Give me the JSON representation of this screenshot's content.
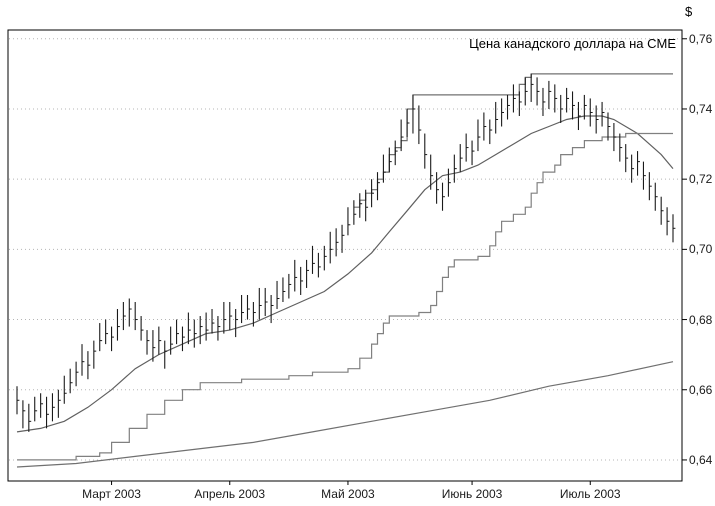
{
  "chart_data": {
    "type": "bar",
    "title": "Цена канадского доллара на CME",
    "ylabel": "$",
    "xlabel": "",
    "ylim": [
      0.634,
      0.7625
    ],
    "grid": true,
    "legend": "none",
    "colors": {
      "bar": "#1a1a1a",
      "grid": "#b5b5b5",
      "frame": "#000000",
      "background": "#ffffff"
    },
    "y_ticks": [
      {
        "value": 0.76,
        "label": "0,76"
      },
      {
        "value": 0.74,
        "label": "0,74"
      },
      {
        "value": 0.72,
        "label": "0,72"
      },
      {
        "value": 0.7,
        "label": "0,70"
      },
      {
        "value": 0.68,
        "label": "0,68"
      },
      {
        "value": 0.66,
        "label": "0,66"
      },
      {
        "value": 0.64,
        "label": "0,64"
      }
    ],
    "x_ticks": [
      {
        "index": 16,
        "label": "Март 2003"
      },
      {
        "index": 36,
        "label": "Апрель 2003"
      },
      {
        "index": 56,
        "label": "Май 2003"
      },
      {
        "index": 77,
        "label": "Июнь 2003"
      },
      {
        "index": 97,
        "label": "Июль 2003"
      }
    ],
    "bars": {
      "name": "price-daily-hlc",
      "high": [
        0.661,
        0.657,
        0.656,
        0.658,
        0.659,
        0.658,
        0.659,
        0.66,
        0.664,
        0.666,
        0.668,
        0.673,
        0.671,
        0.674,
        0.679,
        0.68,
        0.678,
        0.683,
        0.685,
        0.686,
        0.685,
        0.681,
        0.677,
        0.677,
        0.678,
        0.674,
        0.678,
        0.68,
        0.678,
        0.682,
        0.68,
        0.681,
        0.682,
        0.683,
        0.681,
        0.685,
        0.685,
        0.683,
        0.687,
        0.687,
        0.685,
        0.689,
        0.689,
        0.687,
        0.691,
        0.692,
        0.693,
        0.697,
        0.695,
        0.697,
        0.701,
        0.699,
        0.701,
        0.705,
        0.706,
        0.707,
        0.712,
        0.714,
        0.716,
        0.717,
        0.72,
        0.722,
        0.727,
        0.729,
        0.731,
        0.737,
        0.74,
        0.744,
        0.741,
        0.733,
        0.727,
        0.722,
        0.719,
        0.723,
        0.727,
        0.73,
        0.733,
        0.731,
        0.737,
        0.739,
        0.737,
        0.742,
        0.743,
        0.744,
        0.747,
        0.745,
        0.749,
        0.75,
        0.749,
        0.746,
        0.748,
        0.747,
        0.744,
        0.746,
        0.745,
        0.742,
        0.744,
        0.743,
        0.741,
        0.742,
        0.739,
        0.736,
        0.733,
        0.73,
        0.727,
        0.728,
        0.725,
        0.722,
        0.719,
        0.715,
        0.712,
        0.71
      ],
      "low": [
        0.653,
        0.649,
        0.648,
        0.651,
        0.652,
        0.649,
        0.651,
        0.652,
        0.656,
        0.659,
        0.661,
        0.664,
        0.663,
        0.666,
        0.671,
        0.673,
        0.671,
        0.674,
        0.677,
        0.678,
        0.677,
        0.674,
        0.67,
        0.668,
        0.67,
        0.666,
        0.67,
        0.673,
        0.671,
        0.673,
        0.672,
        0.673,
        0.674,
        0.676,
        0.674,
        0.676,
        0.677,
        0.675,
        0.679,
        0.68,
        0.678,
        0.68,
        0.681,
        0.679,
        0.683,
        0.685,
        0.686,
        0.688,
        0.687,
        0.689,
        0.693,
        0.692,
        0.694,
        0.696,
        0.698,
        0.699,
        0.704,
        0.707,
        0.709,
        0.708,
        0.712,
        0.714,
        0.719,
        0.722,
        0.724,
        0.728,
        0.732,
        0.733,
        0.73,
        0.723,
        0.717,
        0.713,
        0.711,
        0.715,
        0.719,
        0.722,
        0.725,
        0.724,
        0.728,
        0.731,
        0.73,
        0.733,
        0.735,
        0.737,
        0.739,
        0.738,
        0.741,
        0.742,
        0.741,
        0.738,
        0.74,
        0.739,
        0.736,
        0.739,
        0.737,
        0.734,
        0.737,
        0.735,
        0.733,
        0.735,
        0.731,
        0.728,
        0.725,
        0.722,
        0.719,
        0.721,
        0.717,
        0.714,
        0.711,
        0.707,
        0.704,
        0.702
      ],
      "close": [
        0.657,
        0.654,
        0.651,
        0.654,
        0.656,
        0.653,
        0.655,
        0.657,
        0.659,
        0.662,
        0.665,
        0.668,
        0.667,
        0.671,
        0.674,
        0.676,
        0.675,
        0.678,
        0.681,
        0.683,
        0.68,
        0.677,
        0.674,
        0.672,
        0.674,
        0.671,
        0.673,
        0.676,
        0.675,
        0.677,
        0.676,
        0.678,
        0.677,
        0.679,
        0.678,
        0.68,
        0.681,
        0.68,
        0.682,
        0.683,
        0.682,
        0.684,
        0.685,
        0.684,
        0.686,
        0.688,
        0.69,
        0.692,
        0.691,
        0.694,
        0.696,
        0.695,
        0.698,
        0.7,
        0.702,
        0.704,
        0.707,
        0.71,
        0.713,
        0.712,
        0.716,
        0.719,
        0.722,
        0.725,
        0.728,
        0.732,
        0.736,
        0.74,
        0.734,
        0.727,
        0.721,
        0.717,
        0.715,
        0.719,
        0.723,
        0.726,
        0.729,
        0.728,
        0.732,
        0.735,
        0.734,
        0.737,
        0.739,
        0.741,
        0.743,
        0.742,
        0.745,
        0.747,
        0.745,
        0.742,
        0.745,
        0.743,
        0.74,
        0.743,
        0.741,
        0.738,
        0.741,
        0.739,
        0.737,
        0.739,
        0.735,
        0.732,
        0.729,
        0.726,
        0.723,
        0.725,
        0.721,
        0.718,
        0.715,
        0.711,
        0.708,
        0.706
      ]
    },
    "lines": [
      {
        "name": "fast-ma",
        "style": "smooth",
        "color": "#606060",
        "points": [
          [
            0,
            0.648
          ],
          [
            4,
            0.649
          ],
          [
            8,
            0.651
          ],
          [
            12,
            0.655
          ],
          [
            16,
            0.66
          ],
          [
            20,
            0.666
          ],
          [
            24,
            0.67
          ],
          [
            28,
            0.673
          ],
          [
            32,
            0.676
          ],
          [
            36,
            0.677
          ],
          [
            40,
            0.679
          ],
          [
            44,
            0.682
          ],
          [
            48,
            0.685
          ],
          [
            52,
            0.688
          ],
          [
            56,
            0.693
          ],
          [
            60,
            0.699
          ],
          [
            63,
            0.705
          ],
          [
            66,
            0.711
          ],
          [
            69,
            0.717
          ],
          [
            72,
            0.721
          ],
          [
            75,
            0.722
          ],
          [
            78,
            0.724
          ],
          [
            81,
            0.727
          ],
          [
            84,
            0.73
          ],
          [
            87,
            0.733
          ],
          [
            90,
            0.735
          ],
          [
            93,
            0.737
          ],
          [
            96,
            0.738
          ],
          [
            99,
            0.738
          ],
          [
            101,
            0.737
          ],
          [
            103,
            0.735
          ],
          [
            105,
            0.733
          ],
          [
            107,
            0.73
          ],
          [
            109,
            0.727
          ],
          [
            111,
            0.723
          ]
        ]
      },
      {
        "name": "upper-channel",
        "style": "step",
        "color": "#707070",
        "points": [
          [
            57,
            0.712
          ],
          [
            58,
            0.714
          ],
          [
            59,
            0.716
          ],
          [
            60,
            0.717
          ],
          [
            61,
            0.72
          ],
          [
            62,
            0.722
          ],
          [
            63,
            0.727
          ],
          [
            64,
            0.729
          ],
          [
            65,
            0.731
          ],
          [
            66,
            0.74
          ],
          [
            67,
            0.744
          ],
          [
            85,
            0.747
          ],
          [
            86,
            0.749
          ],
          [
            87,
            0.75
          ],
          [
            111,
            0.75
          ]
        ]
      },
      {
        "name": "lower-channel",
        "style": "step",
        "color": "#808080",
        "points": [
          [
            0,
            0.64
          ],
          [
            10,
            0.641
          ],
          [
            14,
            0.642
          ],
          [
            16,
            0.645
          ],
          [
            19,
            0.649
          ],
          [
            22,
            0.653
          ],
          [
            25,
            0.657
          ],
          [
            28,
            0.66
          ],
          [
            31,
            0.662
          ],
          [
            38,
            0.663
          ],
          [
            46,
            0.664
          ],
          [
            50,
            0.665
          ],
          [
            56,
            0.666
          ],
          [
            58,
            0.669
          ],
          [
            60,
            0.673
          ],
          [
            61,
            0.676
          ],
          [
            62,
            0.679
          ],
          [
            63,
            0.681
          ],
          [
            68,
            0.682
          ],
          [
            70,
            0.684
          ],
          [
            71,
            0.688
          ],
          [
            72,
            0.692
          ],
          [
            73,
            0.695
          ],
          [
            74,
            0.697
          ],
          [
            78,
            0.698
          ],
          [
            80,
            0.701
          ],
          [
            81,
            0.705
          ],
          [
            82,
            0.708
          ],
          [
            84,
            0.71
          ],
          [
            86,
            0.712
          ],
          [
            87,
            0.716
          ],
          [
            88,
            0.719
          ],
          [
            89,
            0.722
          ],
          [
            91,
            0.724
          ],
          [
            92,
            0.727
          ],
          [
            94,
            0.729
          ],
          [
            96,
            0.731
          ],
          [
            99,
            0.732
          ],
          [
            103,
            0.733
          ],
          [
            111,
            0.733
          ]
        ]
      },
      {
        "name": "long-ma",
        "style": "smooth",
        "color": "#707070",
        "points": [
          [
            0,
            0.638
          ],
          [
            10,
            0.639
          ],
          [
            20,
            0.641
          ],
          [
            30,
            0.643
          ],
          [
            40,
            0.645
          ],
          [
            50,
            0.648
          ],
          [
            60,
            0.651
          ],
          [
            70,
            0.654
          ],
          [
            80,
            0.657
          ],
          [
            90,
            0.661
          ],
          [
            100,
            0.664
          ],
          [
            111,
            0.668
          ]
        ]
      }
    ]
  }
}
